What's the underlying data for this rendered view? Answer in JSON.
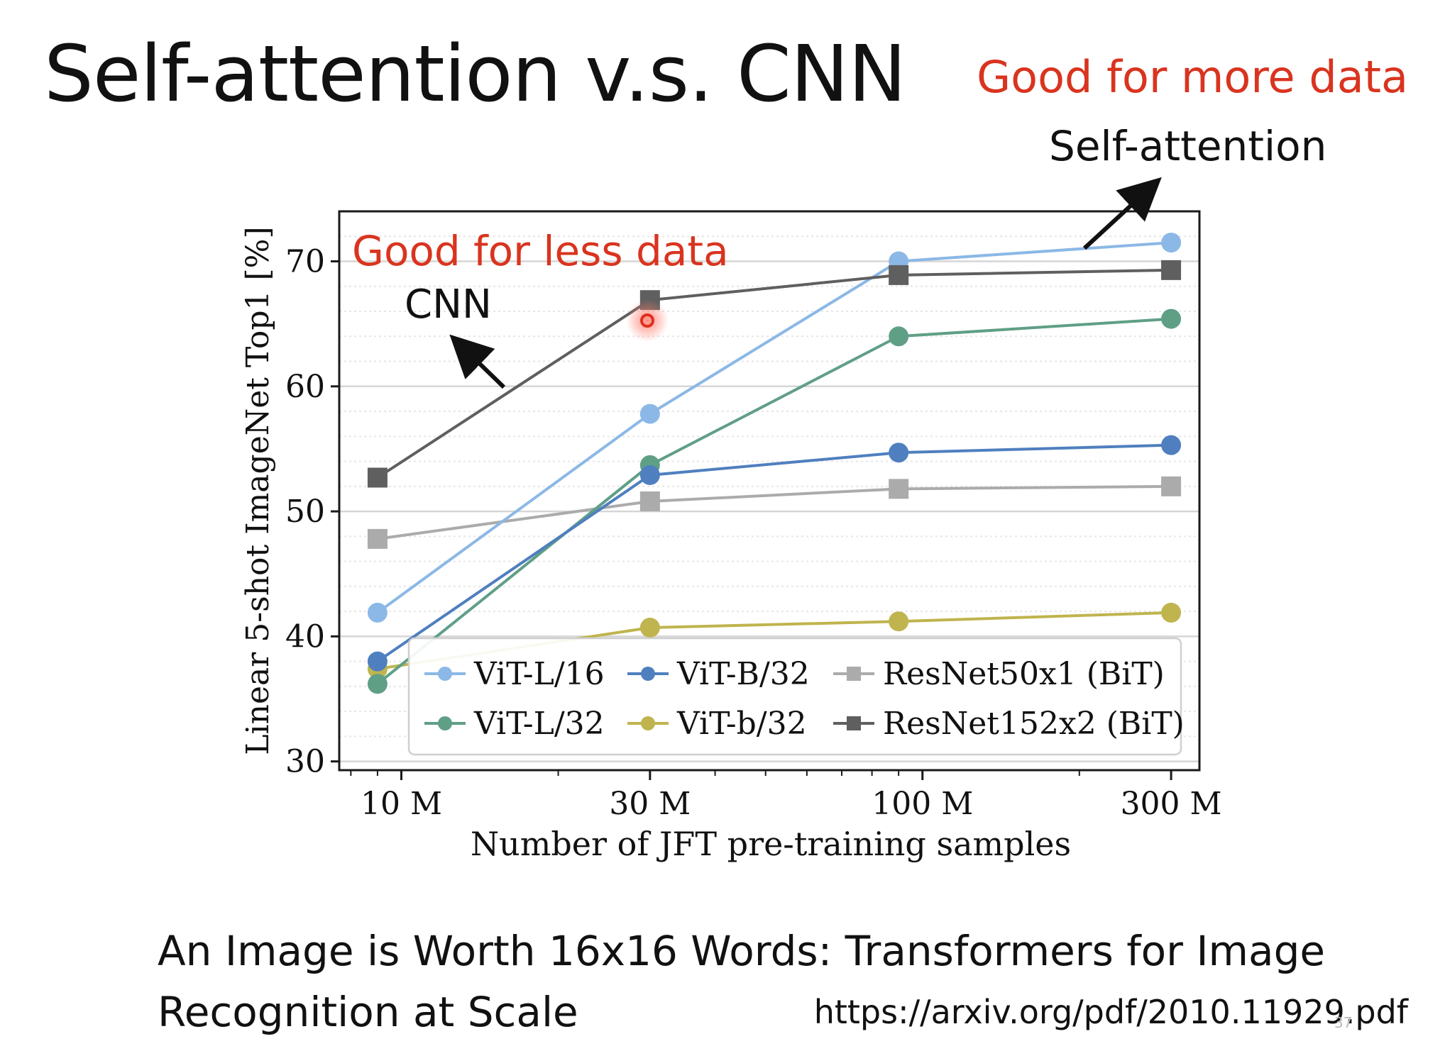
{
  "slide": {
    "title": "Self-attention v.s. CNN",
    "annotation_more_data": "Good for more data",
    "annotation_self_attention": "Self-attention",
    "annotation_less_data": "Good for less data",
    "annotation_cnn": "CNN",
    "citation": "An Image is Worth 16x16 Words: Transformers for Image Recognition at Scale",
    "url": "https://arxiv.org/pdf/2010.11929.pdf",
    "page_number": "37",
    "accent_color": "#d9341f"
  },
  "chart_data": {
    "type": "line",
    "xlabel": "Number of JFT pre-training samples",
    "ylabel": "Linear 5-shot ImageNet Top1 [%]",
    "x_scale": "log",
    "x": [
      9,
      30,
      90,
      300
    ],
    "x_ticks": [
      10,
      30,
      100,
      300
    ],
    "x_tick_labels": [
      "10 M",
      "30 M",
      "100 M",
      "300 M"
    ],
    "y_ticks": [
      30,
      40,
      50,
      60,
      70
    ],
    "ylim": [
      29.3,
      74
    ],
    "xlim": [
      7.6,
      340
    ],
    "grid": true,
    "legend_position": "lower-right",
    "series": [
      {
        "name": "ViT-L/16",
        "color": "#8bb8e6",
        "marker": "circle",
        "values": [
          41.9,
          57.8,
          70.0,
          71.5
        ]
      },
      {
        "name": "ViT-B/32",
        "color": "#4f7fbf",
        "marker": "circle",
        "values": [
          38.0,
          52.9,
          54.7,
          55.3
        ]
      },
      {
        "name": "ResNet50x1 (BiT)",
        "color": "#ababab",
        "marker": "square",
        "values": [
          47.8,
          50.8,
          51.8,
          52.0
        ]
      },
      {
        "name": "ViT-L/32",
        "color": "#5f9f86",
        "marker": "circle",
        "values": [
          36.2,
          53.7,
          64.0,
          65.4
        ]
      },
      {
        "name": "ViT-b/32",
        "color": "#bfb44e",
        "marker": "circle",
        "values": [
          37.4,
          40.7,
          41.2,
          41.9
        ]
      },
      {
        "name": "ResNet152x2 (BiT)",
        "color": "#5f5f5f",
        "marker": "square",
        "values": [
          52.7,
          66.9,
          68.9,
          69.3
        ]
      }
    ]
  }
}
